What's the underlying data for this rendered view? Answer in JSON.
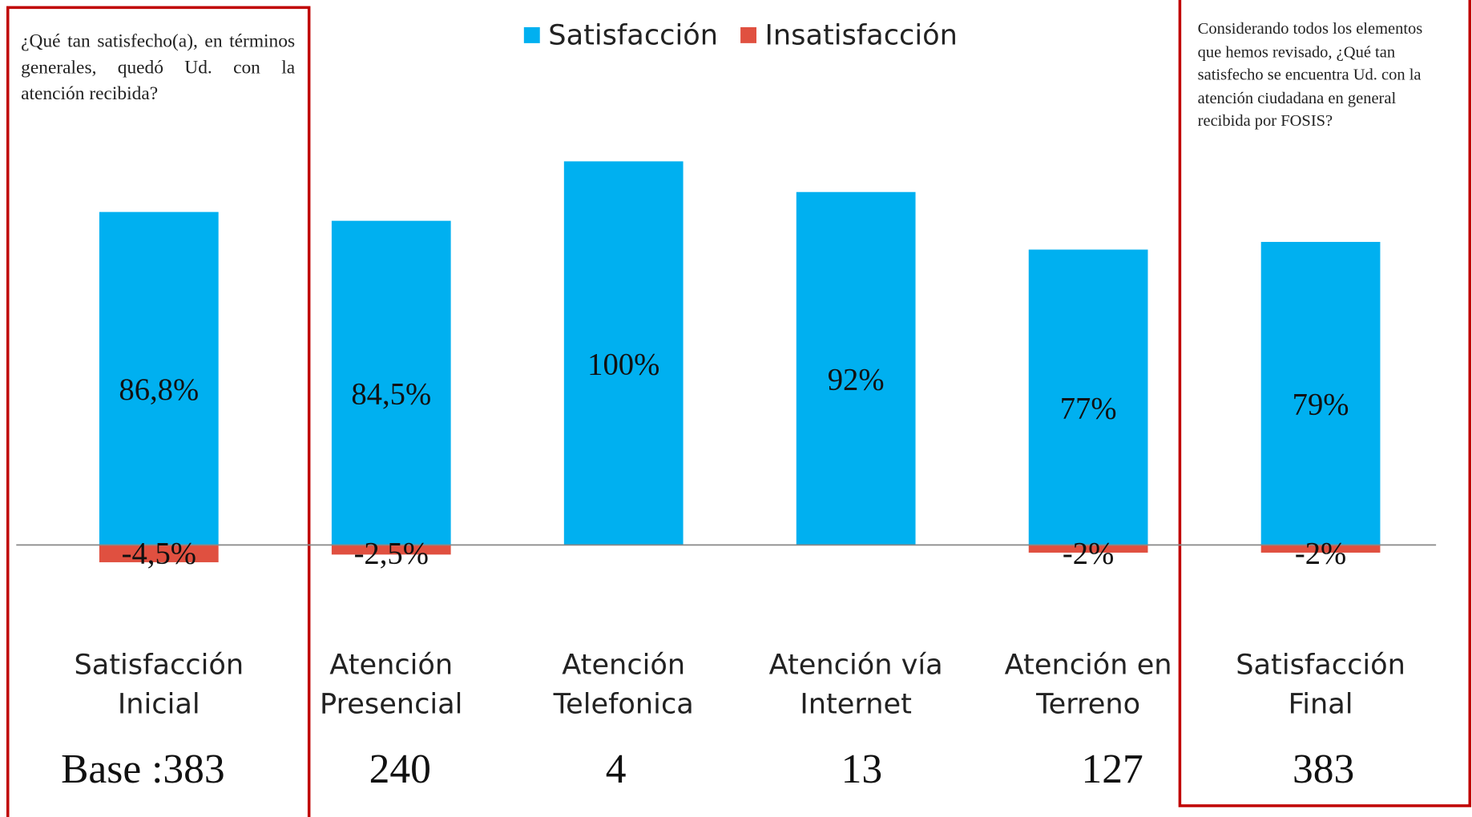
{
  "chart_data": {
    "type": "bar",
    "categories": [
      "Satisfacción Inicial",
      "Atención Presencial",
      "Atención Telefonica",
      "Atención vía Internet",
      "Atención en Terreno",
      "Satisfacción Final"
    ],
    "series": [
      {
        "name": "Satisfacción",
        "color": "#00b0f0",
        "values": [
          86.8,
          84.5,
          100,
          92,
          77,
          79
        ],
        "value_labels": [
          "86,8%",
          "84,5%",
          "100%",
          "92%",
          "77%",
          "79%"
        ]
      },
      {
        "name": "Insatisfacción",
        "color": "#e05040",
        "values": [
          -4.5,
          -2.5,
          null,
          null,
          -2,
          -2
        ],
        "value_labels": [
          "-4,5%",
          "-2,5%",
          null,
          null,
          "-2%",
          "-2%"
        ]
      }
    ],
    "bases": [
      {
        "value": 383,
        "label": "Base :383"
      },
      240,
      4,
      13,
      127,
      383
    ],
    "annotations": [
      "¿Qué tan satisfecho(a), en términos generales, quedó Ud. con la atención recibida?",
      "Considerando todos los elementos que hemos revisado, ¿Qué tan satisfecho se encuentra Ud. con la atención ciudadana en general recibida por FOSIS?"
    ],
    "legend": "top"
  }
}
